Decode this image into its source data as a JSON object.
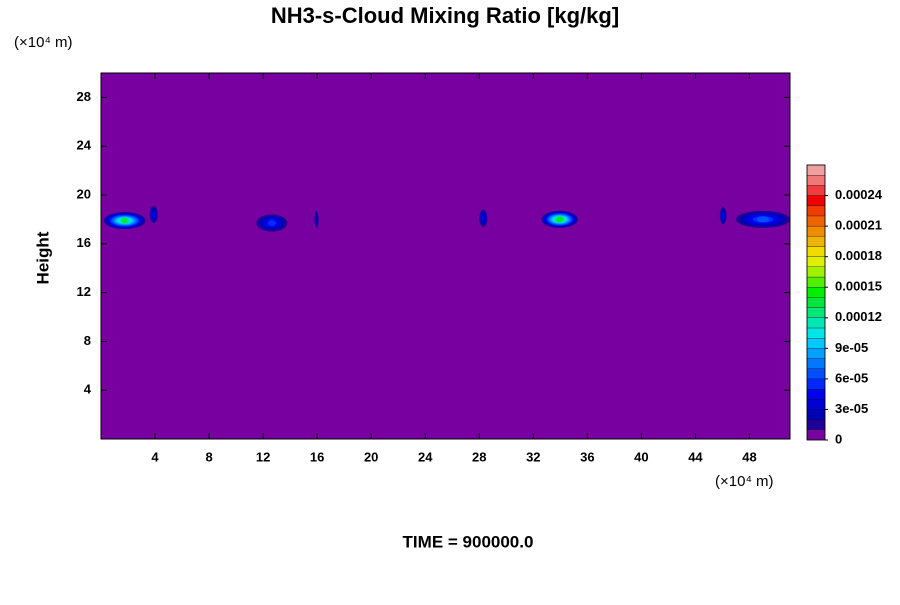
{
  "chart_data": {
    "type": "contour",
    "title": "NH3-s-Cloud Mixing Ratio [kg/kg]",
    "y_unit": "(×10⁴ m)",
    "x_unit": "(×10⁴ m)",
    "ylabel": "Height",
    "footer": "TIME = 900000.0",
    "xlim": [
      0,
      51
    ],
    "ylim": [
      0,
      30
    ],
    "xticks": [
      4,
      8,
      12,
      16,
      20,
      24,
      28,
      32,
      36,
      40,
      44,
      48
    ],
    "yticks": [
      4,
      8,
      12,
      16,
      20,
      24,
      28
    ],
    "x0": [
      0.2,
      3.6,
      11.5,
      15.8,
      28.0,
      32.6,
      45.8,
      47.0
    ],
    "x1": [
      3.3,
      4.2,
      13.8,
      16.1,
      28.6,
      35.3,
      46.3,
      51.0
    ],
    "y": [
      17.9,
      18.4,
      17.7,
      18.0,
      18.1,
      18.0,
      18.3,
      18.0
    ],
    "values": [
      0.00013,
      4e-05,
      5e-05,
      2e-05,
      4e-05,
      0.00014,
      4e-05,
      6e-05
    ],
    "clim": [
      0,
      0.00027
    ],
    "cticks": [
      0,
      {
        "value": 3e-05,
        "label": "3e-05"
      },
      {
        "value": 6e-05,
        "label": "6e-05"
      },
      {
        "value": 9e-05,
        "label": "9e-05"
      },
      0.00012,
      0.00015,
      0.00018,
      0.00021,
      0.00024
    ],
    "colors": [
      "#7800a0",
      "#1e0096",
      "#0000b4",
      "#0000d2",
      "#0000f0",
      "#0028ff",
      "#0050ff",
      "#0078ff",
      "#00a0ff",
      "#00c8ff",
      "#00e6e6",
      "#00e6b4",
      "#00e678",
      "#00e63c",
      "#00f000",
      "#50f000",
      "#a0f000",
      "#dcf000",
      "#f0dc00",
      "#f0b400",
      "#f08c00",
      "#f06400",
      "#f03c00",
      "#f00000",
      "#f03c3c",
      "#f07878",
      "#f0a0a0"
    ]
  }
}
